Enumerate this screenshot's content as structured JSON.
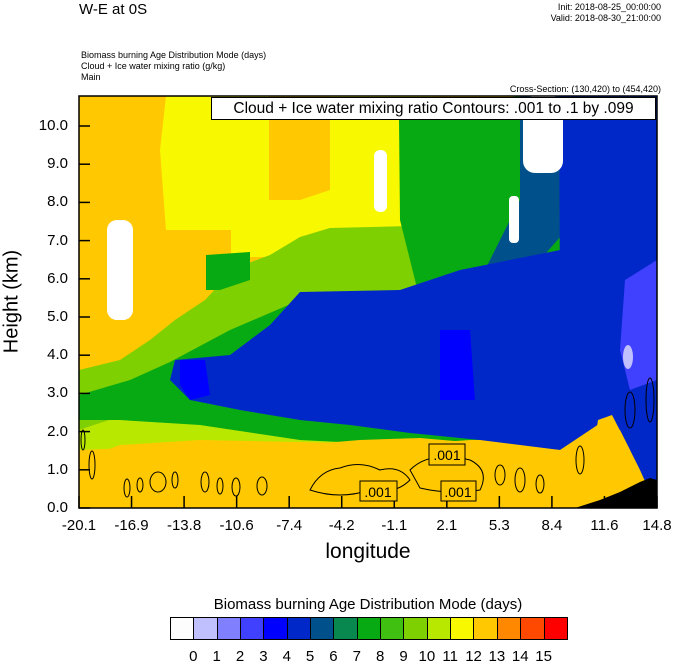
{
  "header": {
    "left_title": "W-E at 0S",
    "init": "Init: 2018-08-25_00:00:00",
    "valid": "Valid: 2018-08-30_21:00:00",
    "field_lines": [
      "Biomass burning Age Distribution Mode   (days)",
      "Cloud + Ice water mixing ratio   (g/kg)",
      "Main"
    ],
    "cross_section": "Cross-Section: (130,420) to (454,420)"
  },
  "chart_data": {
    "type": "heatmap",
    "title": "W-E at 0S",
    "xlabel": "longitude",
    "ylabel": "Height (km)",
    "xlim": [
      -20.1,
      14.8
    ],
    "ylim": [
      0,
      10.8
    ],
    "x_ticks": [
      "-20.1",
      "-16.9",
      "-13.8",
      "-10.6",
      "-7.4",
      "-4.2",
      "-1.1",
      "2.1",
      "5.3",
      "8.4",
      "11.6",
      "14.8"
    ],
    "y_ticks": [
      "0.0",
      "1.0",
      "2.0",
      "3.0",
      "4.0",
      "5.0",
      "6.0",
      "7.0",
      "8.0",
      "9.0",
      "10.0"
    ],
    "contour_info": "Cloud + Ice water mixing ratio Contours: .001 to .1 by .099",
    "contour_labels": [
      ".001",
      ".001",
      ".001"
    ],
    "colorbar": {
      "title": "Biomass burning Age Distribution Mode  (days)",
      "labels": [
        "0",
        "1",
        "2",
        "3",
        "4",
        "5",
        "6",
        "7",
        "8",
        "9",
        "10",
        "11",
        "12",
        "13",
        "14",
        "15"
      ],
      "colors": [
        "#fdfdfd",
        "#c0c0ff",
        "#8080ff",
        "#4040ff",
        "#0000ff",
        "#0028c8",
        "#00508c",
        "#08884f",
        "#08aa14",
        "#40c010",
        "#7fd000",
        "#b8e800",
        "#f8f800",
        "#ffc800",
        "#ff8800",
        "#ff4800",
        "#ff0000"
      ]
    }
  }
}
